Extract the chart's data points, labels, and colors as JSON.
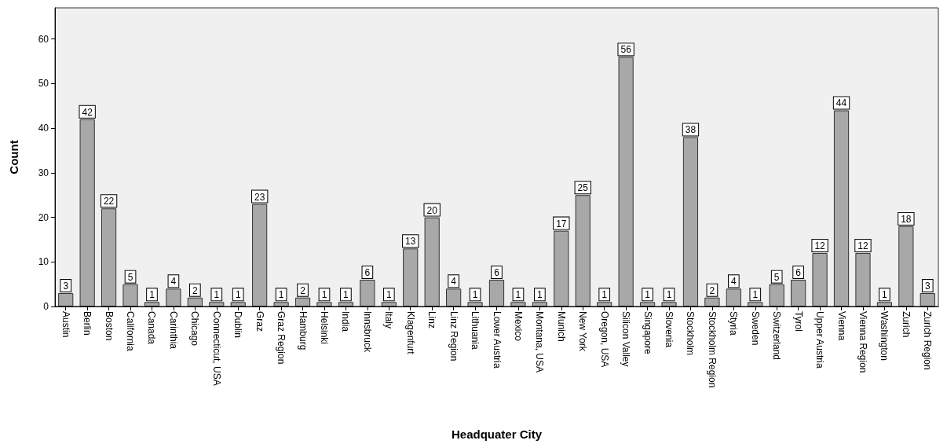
{
  "chart_data": {
    "type": "bar",
    "xlabel": "Headquater City",
    "ylabel": "Count",
    "categories": [
      "Austin",
      "Berlin",
      "Boston",
      "California",
      "Canada",
      "Carinthia",
      "Chicago",
      "Connecticut, USA",
      "Dublin",
      "Graz",
      "Graz Region",
      "Hamburg",
      "Helsinki",
      "India",
      "Innsbruck",
      "Italy",
      "Klagenfurt",
      "Linz",
      "Linz Region",
      "Lithuania",
      "Lower Austria",
      "Mexico",
      "Montana, USA",
      "Munich",
      "New York",
      "Oregon, USA",
      "Silicon Valley",
      "Singapore",
      "Slovenia",
      "Stockholm",
      "Stockholm Region",
      "Styria",
      "Sweden",
      "Switzerland",
      "Tyrol",
      "Upper Austria",
      "Vienna",
      "Vienna Region",
      "Washington",
      "Zurich",
      "Zurich Region"
    ],
    "values": [
      3,
      42,
      22,
      5,
      1,
      4,
      2,
      1,
      1,
      23,
      1,
      2,
      1,
      1,
      6,
      1,
      13,
      20,
      4,
      1,
      6,
      1,
      1,
      17,
      25,
      1,
      56,
      1,
      1,
      38,
      2,
      4,
      1,
      5,
      6,
      12,
      44,
      12,
      1,
      18,
      3
    ],
    "color": "#a8a8a8",
    "ylim": [
      0,
      67
    ],
    "yticks": [
      0,
      10,
      20,
      30,
      40,
      50,
      60
    ],
    "grid": false,
    "data_labels": true
  }
}
